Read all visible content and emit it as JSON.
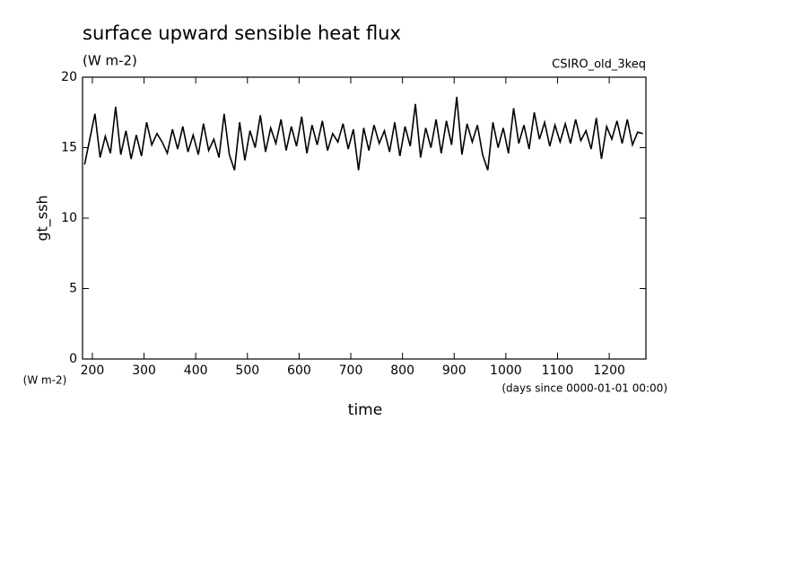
{
  "chart_data": {
    "type": "line",
    "title": "surface upward sensible heat flux",
    "subtitle": "(W m-2)",
    "annotation": "CSIRO_old_3keq",
    "ylabel": "gt_ssh",
    "yunit": "(W m-2)",
    "xlabel": "time",
    "xunit": "(days since 0000-01-01 00:00)",
    "color": "#000000",
    "xlim": [
      181,
      1271
    ],
    "ylim": [
      0,
      20
    ],
    "xticks": [
      200,
      300,
      400,
      500,
      600,
      700,
      800,
      900,
      1000,
      1100,
      1200
    ],
    "yticks": [
      0,
      5,
      10,
      15,
      20
    ],
    "x": [
      185,
      195,
      205,
      215,
      225,
      235,
      245,
      255,
      265,
      275,
      285,
      295,
      305,
      315,
      325,
      335,
      345,
      355,
      365,
      375,
      385,
      395,
      405,
      415,
      425,
      435,
      445,
      455,
      465,
      475,
      485,
      495,
      505,
      515,
      525,
      535,
      545,
      555,
      565,
      575,
      585,
      595,
      605,
      615,
      625,
      635,
      645,
      655,
      665,
      675,
      685,
      695,
      705,
      715,
      725,
      735,
      745,
      755,
      765,
      775,
      785,
      795,
      805,
      815,
      825,
      835,
      845,
      855,
      865,
      875,
      885,
      895,
      905,
      915,
      925,
      935,
      945,
      955,
      965,
      975,
      985,
      995,
      1005,
      1015,
      1025,
      1035,
      1045,
      1055,
      1065,
      1075,
      1085,
      1095,
      1105,
      1115,
      1125,
      1135,
      1145,
      1155,
      1165,
      1175,
      1185,
      1195,
      1205,
      1215,
      1225,
      1235,
      1245,
      1255,
      1265
    ],
    "values": [
      13.8,
      15.6,
      17.4,
      14.3,
      15.8,
      14.6,
      17.9,
      14.5,
      16.2,
      14.2,
      15.9,
      14.4,
      16.8,
      15.2,
      16.0,
      15.4,
      14.6,
      16.3,
      14.9,
      16.5,
      14.7,
      15.9,
      14.5,
      16.7,
      14.8,
      15.6,
      14.3,
      17.4,
      14.5,
      13.4,
      16.8,
      14.1,
      16.2,
      15.0,
      17.3,
      14.7,
      16.4,
      15.3,
      17.0,
      14.8,
      16.5,
      15.1,
      17.2,
      14.6,
      16.6,
      15.2,
      16.9,
      14.8,
      16.0,
      15.4,
      16.7,
      14.9,
      16.3,
      13.4,
      16.4,
      14.8,
      16.6,
      15.3,
      16.2,
      14.7,
      16.8,
      14.4,
      16.5,
      15.1,
      18.1,
      14.3,
      16.4,
      15.0,
      17.0,
      14.6,
      16.9,
      15.2,
      18.6,
      14.5,
      16.7,
      15.4,
      16.6,
      14.5,
      13.4,
      16.8,
      15.0,
      16.4,
      14.6,
      17.8,
      15.3,
      16.6,
      14.9,
      17.5,
      15.6,
      16.8,
      15.1,
      16.6,
      15.4,
      16.7,
      15.3,
      17.0,
      15.5,
      16.2,
      14.9,
      17.1,
      14.2,
      16.5,
      15.6,
      16.9,
      15.3,
      17.0,
      15.2,
      16.1,
      16.0
    ]
  }
}
